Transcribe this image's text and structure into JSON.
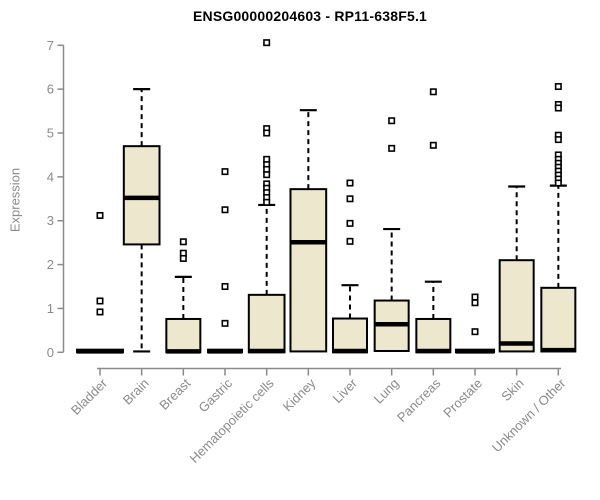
{
  "page": {
    "background": "#ffffff"
  },
  "chart_data": {
    "type": "boxplot",
    "title": "ENSG00000204603 - RP11-638F5.1",
    "xlabel": "",
    "ylabel": "Expression",
    "ylim": [
      0,
      7
    ],
    "yticks": [
      0,
      1,
      2,
      3,
      4,
      5,
      6,
      7
    ],
    "grid": false,
    "legend": false,
    "x_tick_rotation_deg": 45,
    "categories": [
      "Bladder",
      "Brain",
      "Breast",
      "Gastric",
      "Hematopoietic cells",
      "Kidney",
      "Liver",
      "Lung",
      "Pancreas",
      "Prostate",
      "Skin",
      "Unknown / Other"
    ],
    "series": [
      {
        "name": "Bladder",
        "q1": 0,
        "median": 0.02,
        "q3": 0.06,
        "whisker_low": null,
        "whisker_high": null,
        "outliers": [
          3.12,
          1.17,
          0.92
        ],
        "wscale": 1.35
      },
      {
        "name": "Brain",
        "q1": 2.46,
        "median": 3.52,
        "q3": 4.7,
        "whisker_low": 0.02,
        "whisker_high": 6.0,
        "outliers": [],
        "wscale": 1.05
      },
      {
        "name": "Breast",
        "q1": 0,
        "median": 0.02,
        "q3": 0.76,
        "whisker_low": null,
        "whisker_high": 1.72,
        "outliers": [
          2.52,
          2.26,
          2.14
        ],
        "wscale": 1.0
      },
      {
        "name": "Gastric",
        "q1": 0,
        "median": 0.02,
        "q3": 0.06,
        "whisker_low": null,
        "whisker_high": null,
        "outliers": [
          4.12,
          3.25,
          1.5,
          0.66
        ],
        "wscale": 1.0
      },
      {
        "name": "Hematopoietic cells",
        "q1": 0,
        "median": 0.03,
        "q3": 1.31,
        "whisker_low": null,
        "whisker_high": 3.36,
        "outliers": [
          7.06,
          5.1,
          5.0,
          4.4,
          4.28,
          4.17,
          4.05,
          3.84,
          3.74,
          3.64,
          3.53,
          3.42
        ],
        "wscale": 1.05
      },
      {
        "name": "Kidney",
        "q1": 0.02,
        "median": 2.51,
        "q3": 3.72,
        "whisker_low": null,
        "whisker_high": 5.52,
        "outliers": [],
        "wscale": 1.05
      },
      {
        "name": "Liver",
        "q1": 0,
        "median": 0.03,
        "q3": 0.77,
        "whisker_low": null,
        "whisker_high": 1.53,
        "outliers": [
          3.86,
          3.5,
          2.94,
          2.53
        ],
        "wscale": 1.0
      },
      {
        "name": "Lung",
        "q1": 0.03,
        "median": 0.64,
        "q3": 1.18,
        "whisker_low": null,
        "whisker_high": 2.81,
        "outliers": [
          5.28,
          4.65
        ],
        "wscale": 1.0
      },
      {
        "name": "Pancreas",
        "q1": 0,
        "median": 0.03,
        "q3": 0.76,
        "whisker_low": null,
        "whisker_high": 1.61,
        "outliers": [
          5.94,
          4.72
        ],
        "wscale": 1.0
      },
      {
        "name": "Prostate",
        "q1": 0,
        "median": 0.02,
        "q3": 0.06,
        "whisker_low": null,
        "whisker_high": null,
        "outliers": [
          1.26,
          1.13,
          0.47
        ],
        "wscale": 1.12
      },
      {
        "name": "Skin",
        "q1": 0.02,
        "median": 0.2,
        "q3": 2.1,
        "whisker_low": null,
        "whisker_high": 3.78,
        "outliers": [],
        "wscale": 1.0
      },
      {
        "name": "Unknown / Other",
        "q1": 0.02,
        "median": 0.05,
        "q3": 1.47,
        "whisker_low": null,
        "whisker_high": 3.8,
        "outliers": [
          6.06,
          5.65,
          5.57,
          4.95,
          4.85,
          4.5,
          4.4,
          4.31,
          4.22,
          4.13,
          4.04,
          3.95,
          3.86
        ],
        "wscale": 1.0
      }
    ],
    "colors": {
      "box_fill": "#EDE8CD",
      "box_stroke": "#000000",
      "median": "#000000",
      "whisker": "#000000",
      "outlier_fill": "#ffffff",
      "outlier_stroke": "#000000",
      "axis": "#8a8a8a",
      "axis_text": "#8a8a8a",
      "title_text": "#000000"
    }
  }
}
